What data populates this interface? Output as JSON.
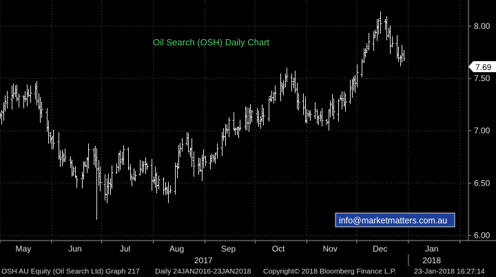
{
  "chart_data": {
    "type": "ohlc",
    "title": "Oil Search (OSH) Daily Chart",
    "watermark": "info@marketmatters.com.au",
    "last_price_label": "7.69",
    "ylim": [
      5.95,
      8.25
    ],
    "y_ticks": [
      "8.00",
      "7.50",
      "7.00",
      "6.50",
      "6.00"
    ],
    "y_tick_values": [
      8.0,
      7.5,
      7.0,
      6.5,
      6.0
    ],
    "x_range_days": [
      0,
      281
    ],
    "months": [
      {
        "label": "May",
        "day": 14
      },
      {
        "label": "Jun",
        "day": 45
      },
      {
        "label": "Jul",
        "day": 75
      },
      {
        "label": "Aug",
        "day": 106
      },
      {
        "label": "Sep",
        "day": 137
      },
      {
        "label": "Oct",
        "day": 167
      },
      {
        "label": "Nov",
        "day": 198
      },
      {
        "label": "Dec",
        "day": 228
      },
      {
        "label": "Jan",
        "day": 259
      }
    ],
    "year_labels": [
      {
        "label": "2017",
        "day": 122
      },
      {
        "label": "2018",
        "day": 259
      }
    ],
    "month_boundaries_days": [
      0,
      31,
      61,
      92,
      123,
      153,
      184,
      214,
      245,
      276
    ],
    "year_boundary_day": 245,
    "series_anchors": [
      {
        "day": 0,
        "close": 7.15
      },
      {
        "day": 4,
        "close": 7.3
      },
      {
        "day": 8,
        "close": 7.4
      },
      {
        "day": 12,
        "close": 7.3
      },
      {
        "day": 16,
        "close": 7.35
      },
      {
        "day": 19,
        "close": 7.45
      },
      {
        "day": 22,
        "close": 7.3
      },
      {
        "day": 26,
        "close": 7.1
      },
      {
        "day": 30,
        "close": 6.95
      },
      {
        "day": 34,
        "close": 6.82
      },
      {
        "day": 38,
        "close": 6.75
      },
      {
        "day": 42,
        "close": 6.7
      },
      {
        "day": 45,
        "close": 6.55
      },
      {
        "day": 48,
        "close": 6.5
      },
      {
        "day": 51,
        "close": 6.72
      },
      {
        "day": 54,
        "close": 6.88
      },
      {
        "day": 57,
        "close": 6.7
      },
      {
        "day": 60,
        "close": 6.5
      },
      {
        "day": 62,
        "close": 6.35
      },
      {
        "day": 65,
        "close": 6.5
      },
      {
        "day": 68,
        "close": 6.62
      },
      {
        "day": 71,
        "close": 6.72
      },
      {
        "day": 74,
        "close": 6.78
      },
      {
        "day": 77,
        "close": 6.6
      },
      {
        "day": 80,
        "close": 6.55
      },
      {
        "day": 84,
        "close": 6.68
      },
      {
        "day": 88,
        "close": 6.62
      },
      {
        "day": 92,
        "close": 6.55
      },
      {
        "day": 96,
        "close": 6.45
      },
      {
        "day": 100,
        "close": 6.4
      },
      {
        "day": 103,
        "close": 6.45
      },
      {
        "day": 106,
        "close": 6.7
      },
      {
        "day": 109,
        "close": 6.9
      },
      {
        "day": 112,
        "close": 6.92
      },
      {
        "day": 115,
        "close": 6.75
      },
      {
        "day": 118,
        "close": 6.6
      },
      {
        "day": 121,
        "close": 6.72
      },
      {
        "day": 124,
        "close": 6.78
      },
      {
        "day": 127,
        "close": 6.76
      },
      {
        "day": 130,
        "close": 6.85
      },
      {
        "day": 133,
        "close": 6.9
      },
      {
        "day": 136,
        "close": 7.05
      },
      {
        "day": 139,
        "close": 7.1
      },
      {
        "day": 142,
        "close": 7.0
      },
      {
        "day": 145,
        "close": 7.05
      },
      {
        "day": 148,
        "close": 7.1
      },
      {
        "day": 151,
        "close": 7.2
      },
      {
        "day": 154,
        "close": 7.12
      },
      {
        "day": 157,
        "close": 7.15
      },
      {
        "day": 160,
        "close": 7.25
      },
      {
        "day": 163,
        "close": 7.35
      },
      {
        "day": 166,
        "close": 7.45
      },
      {
        "day": 169,
        "close": 7.38
      },
      {
        "day": 172,
        "close": 7.5
      },
      {
        "day": 174,
        "close": 7.55
      },
      {
        "day": 177,
        "close": 7.35
      },
      {
        "day": 180,
        "close": 7.22
      },
      {
        "day": 183,
        "close": 7.15
      },
      {
        "day": 186,
        "close": 7.2
      },
      {
        "day": 189,
        "close": 7.22
      },
      {
        "day": 192,
        "close": 7.1
      },
      {
        "day": 195,
        "close": 7.05
      },
      {
        "day": 198,
        "close": 7.22
      },
      {
        "day": 201,
        "close": 7.18
      },
      {
        "day": 204,
        "close": 7.25
      },
      {
        "day": 207,
        "close": 7.32
      },
      {
        "day": 210,
        "close": 7.42
      },
      {
        "day": 213,
        "close": 7.5
      },
      {
        "day": 216,
        "close": 7.65
      },
      {
        "day": 219,
        "close": 7.78
      },
      {
        "day": 222,
        "close": 7.8
      },
      {
        "day": 225,
        "close": 7.95
      },
      {
        "day": 228,
        "close": 8.05
      },
      {
        "day": 231,
        "close": 8.02
      },
      {
        "day": 234,
        "close": 7.85
      },
      {
        "day": 237,
        "close": 7.7
      },
      {
        "day": 240,
        "close": 7.68
      },
      {
        "day": 242,
        "close": 7.69
      }
    ],
    "grid": true,
    "legend": "none"
  },
  "footer": {
    "ticker": "OSH AU Equity (Oil Search Ltd) Graph 217",
    "range": "Daily 24JAN2016-23JAN2018",
    "copyright": "Copyright© 2018 Bloomberg Finance L.P.",
    "timestamp": "23-Jan-2018 16:27:14"
  },
  "colors": {
    "background": "#000000",
    "bars": "#e8e8e8",
    "grid": "#5a5a5a",
    "title": "#3fd46a",
    "watermark_bg": "#1e3f9a",
    "last_price_bg": "#ffffff",
    "last_price_text": "#000000"
  }
}
